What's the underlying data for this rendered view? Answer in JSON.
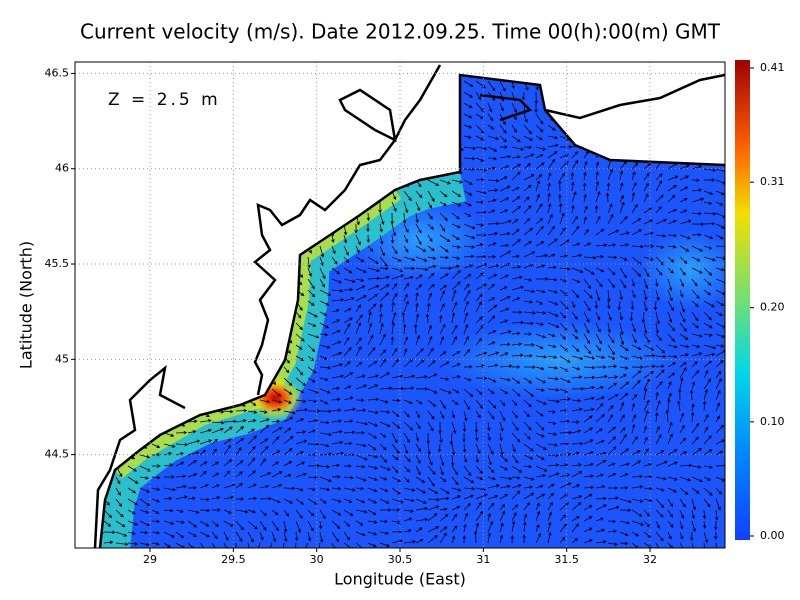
{
  "title": "Current velocity (m/s). Date 2012.09.25. Time 00(h):00(m) GMT",
  "annotation": "Z = 2.5 m",
  "x_axis": {
    "label": "Longitude (East)",
    "lim": [
      28.55,
      32.45
    ],
    "ticks": [
      29,
      29.5,
      30,
      30.5,
      31,
      31.5,
      32
    ]
  },
  "y_axis": {
    "label": "Latitude (North)",
    "lim": [
      44.01,
      46.56
    ],
    "ticks": [
      44.5,
      45,
      45.5,
      46,
      46.5
    ]
  },
  "colorbar": {
    "lim": [
      0,
      0.41
    ],
    "ticks": [
      {
        "value": 0,
        "label": "0.00"
      },
      {
        "value": 0.1,
        "label": "0.10"
      },
      {
        "value": 0.2,
        "label": "0.20"
      },
      {
        "value": 0.31,
        "label": "0.31"
      },
      {
        "value": 0.41,
        "label": "0.41"
      }
    ]
  }
}
